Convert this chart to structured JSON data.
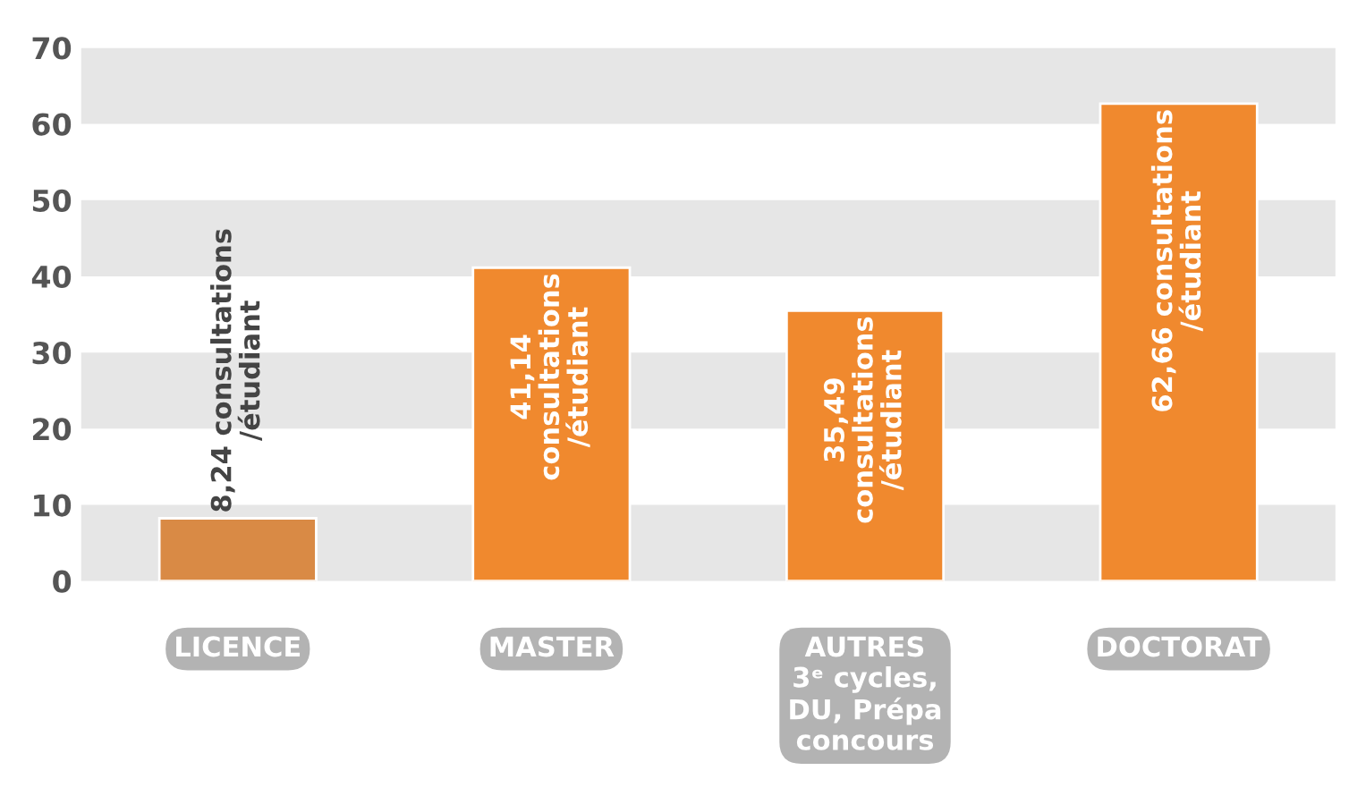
{
  "chart_data": {
    "type": "bar",
    "categories": [
      "LICENCE",
      "MASTER",
      "AUTRES\n3ᵉ cycles,\nDU, Prépa\nconcours",
      "DOCTORAT"
    ],
    "values": [
      8.24,
      41.14,
      35.49,
      62.66
    ],
    "colors": [
      "#d98a45",
      "#f0892e",
      "#f0892e",
      "#f0892e"
    ],
    "value_labels": [
      "8,24 consultations\n/étudiant",
      "41,14\nconsultations\n/étudiant",
      "35,49\nconsultations\n/étudiant",
      "62,66 consultations\n/étudiant"
    ],
    "ylim": [
      0,
      70
    ],
    "yticks": [
      0,
      10,
      20,
      30,
      40,
      50,
      60,
      70
    ],
    "bands": [
      {
        "axis": "y",
        "from": 0,
        "to": 10,
        "color": "#e6e6e6"
      },
      {
        "axis": "y",
        "from": 20,
        "to": 30,
        "color": "#e6e6e6"
      },
      {
        "axis": "y",
        "from": 40,
        "to": 50,
        "color": "#e6e6e6"
      },
      {
        "axis": "y",
        "from": 60,
        "to": 70,
        "color": "#e6e6e6"
      }
    ],
    "grid": false,
    "legend": false
  }
}
